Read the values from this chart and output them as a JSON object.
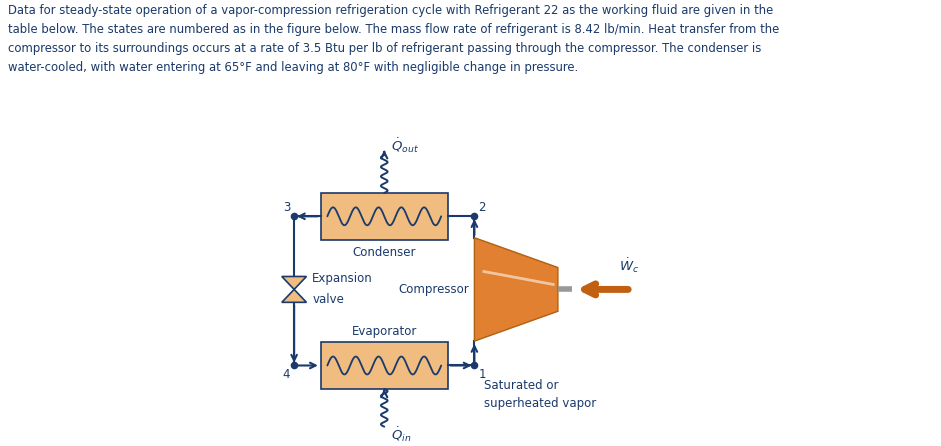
{
  "title_text": "Data for steady-state operation of a vapor-compression refrigeration cycle with Refrigerant 22 as the working fluid are given in the\ntable below. The states are numbered as in the figure below. The mass flow rate of refrigerant is 8.42 lb/min. Heat transfer from the\ncompressor to its surroundings occurs at a rate of 3.5 Btu per lb of refrigerant passing through the compressor. The condenser is\nwater-cooled, with water entering at 65°F and leaving at 80°F with negligible change in pressure.",
  "text_color": "#1a3a6b",
  "orange_fill": "#E08030",
  "orange_dark": "#B06010",
  "orange_light": "#F0A050",
  "box_fill": "#F0BC80",
  "box_edge": "#1a3a6b",
  "arrow_color": "#1a3a6b",
  "wc_arrow_color": "#C06010",
  "condenser_label": "Condenser",
  "compressor_label": "Compressor",
  "evaporator_label": "Evaporator",
  "expansion_label1": "Expansion",
  "expansion_label2": "valve",
  "sat_label1": "Saturated or",
  "sat_label2": "superheated vapor",
  "q_out_label": "$\\dot{Q}_{out}$",
  "q_in_label": "$\\dot{Q}_{in}$",
  "wc_label": "$\\dot{W}_c$",
  "state1": "1",
  "state2": "2",
  "state3": "3",
  "state4": "4"
}
